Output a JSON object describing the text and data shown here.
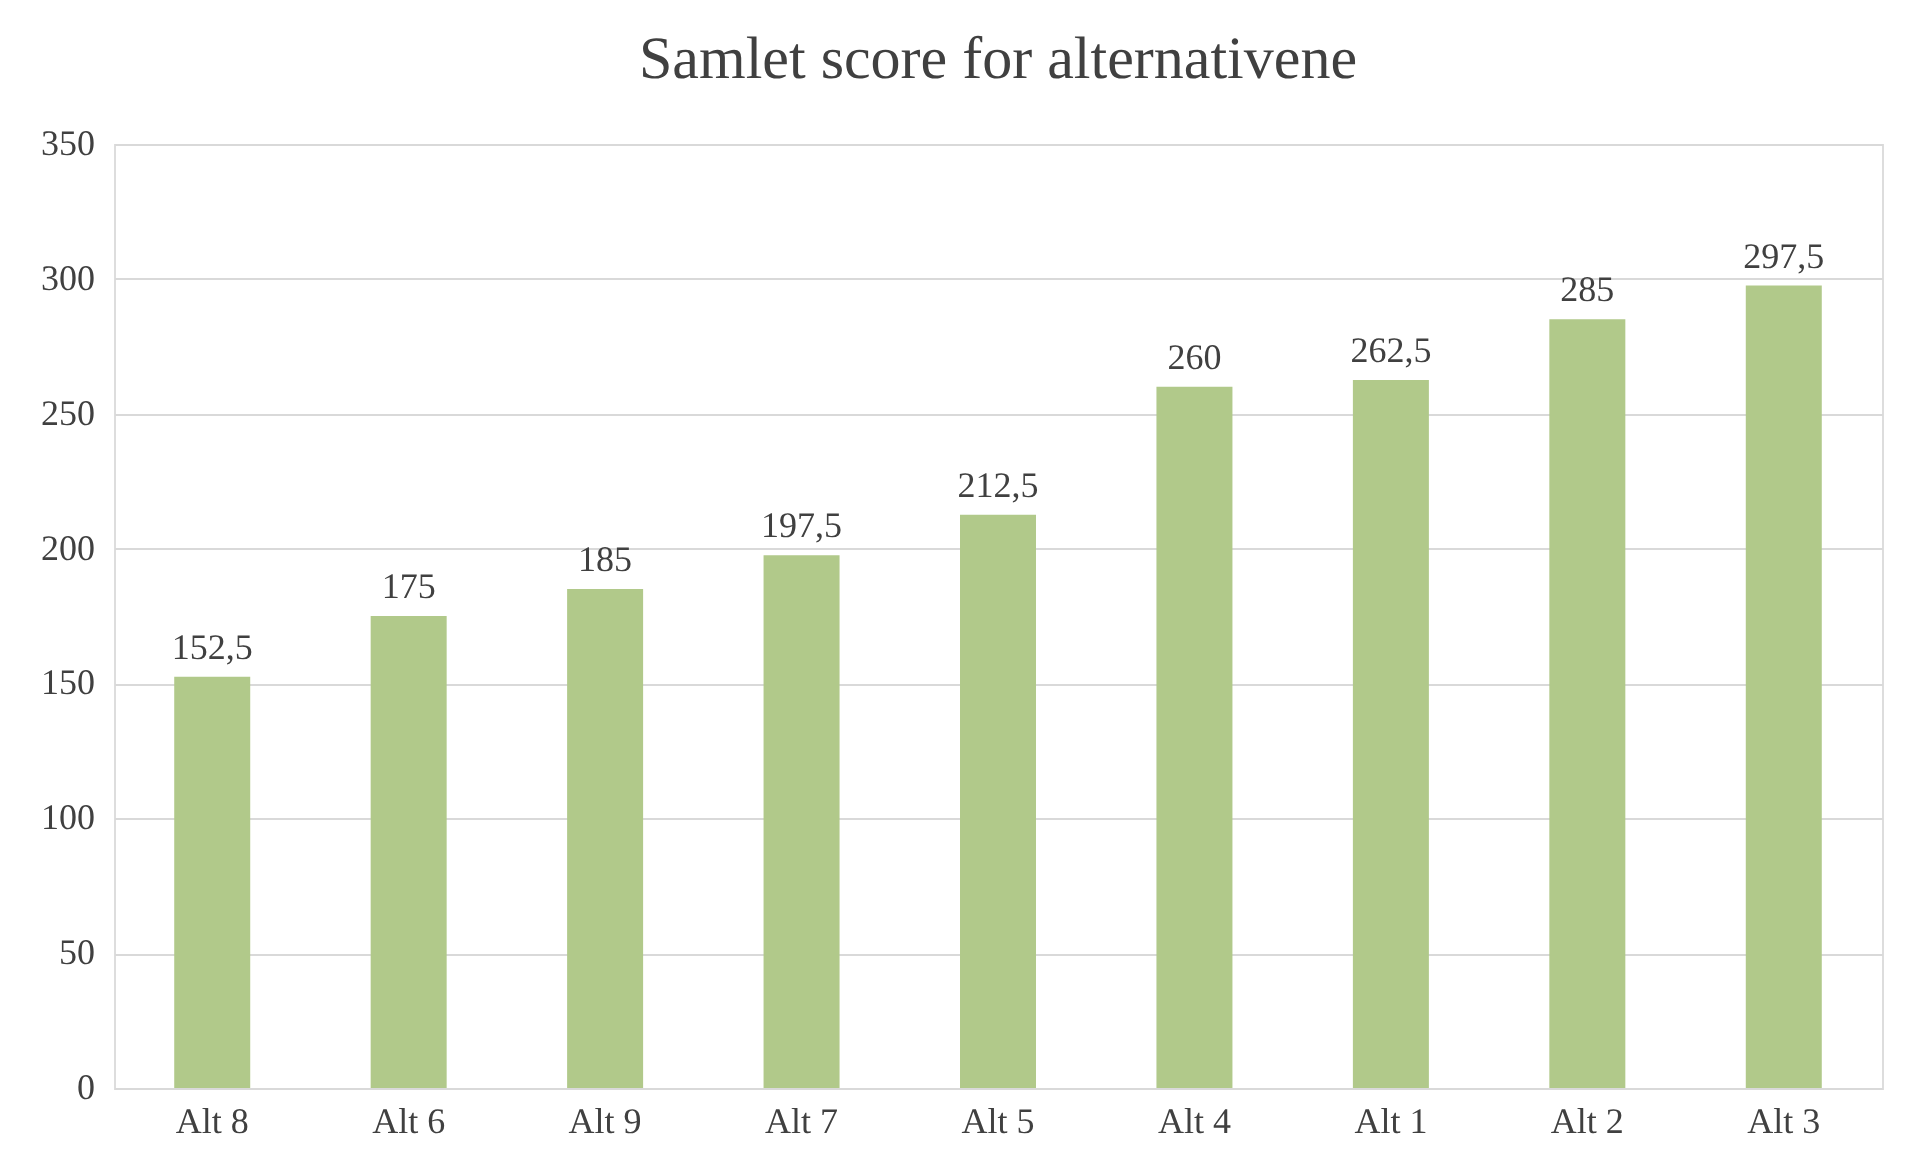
{
  "chart_data": {
    "type": "bar",
    "title": "Samlet score for alternativene",
    "categories": [
      "Alt 8",
      "Alt 6",
      "Alt 9",
      "Alt 7",
      "Alt 5",
      "Alt 4",
      "Alt 1",
      "Alt 2",
      "Alt 3"
    ],
    "values": [
      152.5,
      175,
      185,
      197.5,
      212.5,
      260,
      262.5,
      285,
      297.5
    ],
    "value_labels": [
      "152,5",
      "175",
      "185",
      "197,5",
      "212,5",
      "260",
      "262,5",
      "285",
      "297,5"
    ],
    "color": "#b1c98a",
    "ylim": [
      0,
      350
    ],
    "yticks": [
      0,
      50,
      100,
      150,
      200,
      250,
      300,
      350
    ],
    "grid": "y"
  }
}
